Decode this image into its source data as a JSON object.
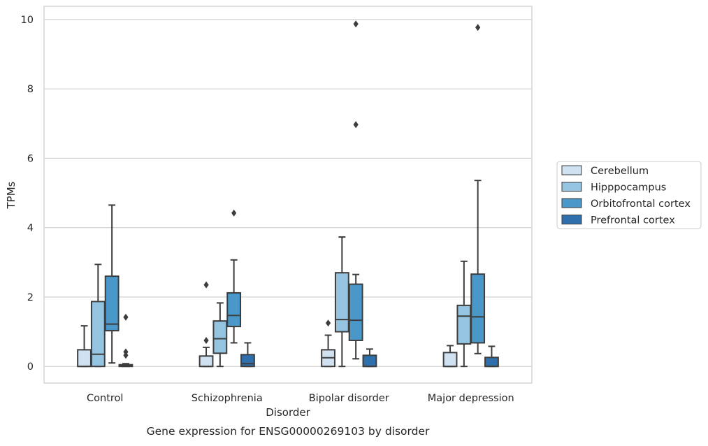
{
  "chart_data": {
    "type": "box",
    "title": "Gene expression for ENSG00000269103 by disorder",
    "xlabel": "Disorder",
    "ylabel": "TPMs",
    "ylim": [
      -0.48,
      10.38
    ],
    "yticks": [
      "0",
      "2",
      "4",
      "6",
      "8",
      "10"
    ],
    "grid": "horizontal",
    "legend_position": "right",
    "categories": [
      "Control",
      "Schizophrenia",
      "Bipolar disorder",
      "Major depression"
    ],
    "series": [
      {
        "name": "Cerebellum",
        "color": "#d0e1f2",
        "boxes": [
          {
            "q1": 0.0,
            "median": 0.0,
            "q3": 0.48,
            "whisker_low": 0.0,
            "whisker_high": 1.17,
            "outliers": []
          },
          {
            "q1": 0.0,
            "median": 0.0,
            "q3": 0.3,
            "whisker_low": 0.0,
            "whisker_high": 0.55,
            "outliers": [
              0.75,
              2.35
            ]
          },
          {
            "q1": 0.0,
            "median": 0.25,
            "q3": 0.48,
            "whisker_low": 0.0,
            "whisker_high": 0.9,
            "outliers": [
              1.25
            ]
          },
          {
            "q1": 0.0,
            "median": 0.0,
            "q3": 0.4,
            "whisker_low": 0.0,
            "whisker_high": 0.6,
            "outliers": []
          }
        ]
      },
      {
        "name": "Hipppocampus",
        "color": "#94c4df",
        "boxes": [
          {
            "q1": 0.0,
            "median": 0.35,
            "q3": 1.87,
            "whisker_low": 0.0,
            "whisker_high": 2.94,
            "outliers": []
          },
          {
            "q1": 0.38,
            "median": 0.8,
            "q3": 1.31,
            "whisker_low": 0.0,
            "whisker_high": 1.83,
            "outliers": []
          },
          {
            "q1": 1.0,
            "median": 1.35,
            "q3": 2.7,
            "whisker_low": 0.0,
            "whisker_high": 3.73,
            "outliers": []
          },
          {
            "q1": 0.65,
            "median": 1.45,
            "q3": 1.76,
            "whisker_low": 0.0,
            "whisker_high": 3.03,
            "outliers": []
          }
        ]
      },
      {
        "name": "Orbitofrontal cortex",
        "color": "#4a98c9",
        "boxes": [
          {
            "q1": 1.03,
            "median": 1.22,
            "q3": 2.6,
            "whisker_low": 0.1,
            "whisker_high": 4.65,
            "outliers": []
          },
          {
            "q1": 1.15,
            "median": 1.47,
            "q3": 2.12,
            "whisker_low": 0.68,
            "whisker_high": 3.07,
            "outliers": [
              4.42
            ]
          },
          {
            "q1": 0.75,
            "median": 1.33,
            "q3": 2.37,
            "whisker_low": 0.22,
            "whisker_high": 2.65,
            "outliers": [
              6.97,
              9.87
            ]
          },
          {
            "q1": 0.68,
            "median": 1.43,
            "q3": 2.66,
            "whisker_low": 0.37,
            "whisker_high": 5.36,
            "outliers": [
              9.77
            ]
          }
        ]
      },
      {
        "name": "Prefrontal cortex",
        "color": "#2f6fab",
        "boxes": [
          {
            "q1": 0.0,
            "median": 0.02,
            "q3": 0.05,
            "whisker_low": 0.0,
            "whisker_high": 0.08,
            "outliers": [
              0.32,
              0.42,
              1.42
            ]
          },
          {
            "q1": 0.0,
            "median": 0.08,
            "q3": 0.34,
            "whisker_low": 0.0,
            "whisker_high": 0.68,
            "outliers": []
          },
          {
            "q1": 0.0,
            "median": 0.0,
            "q3": 0.32,
            "whisker_low": 0.0,
            "whisker_high": 0.5,
            "outliers": []
          },
          {
            "q1": 0.0,
            "median": 0.0,
            "q3": 0.26,
            "whisker_low": 0.0,
            "whisker_high": 0.58,
            "outliers": []
          }
        ]
      }
    ]
  }
}
